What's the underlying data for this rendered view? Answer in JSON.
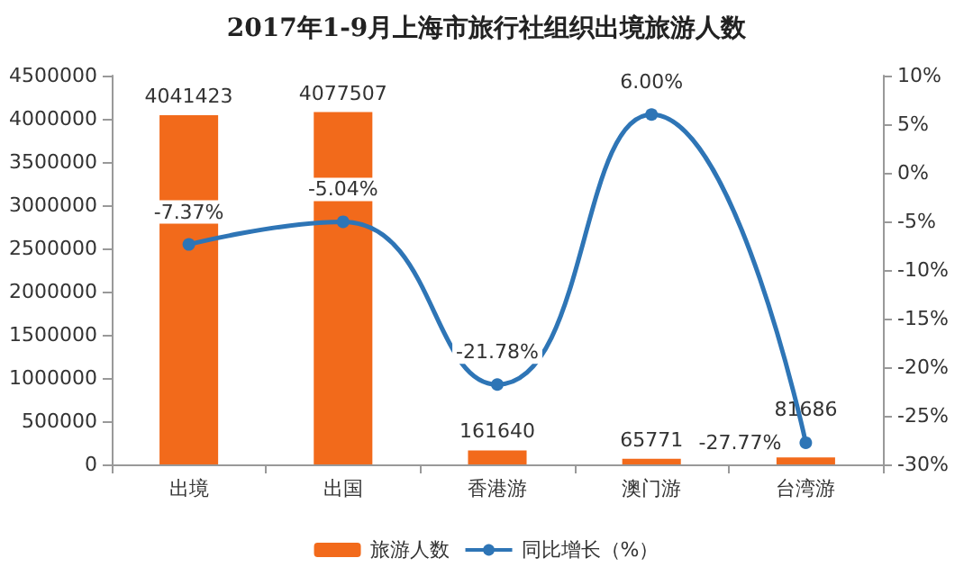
{
  "chart_data": {
    "type": "bar",
    "title": "2017年1-9月上海市旅行社组织出境旅游人数",
    "categories": [
      "出境",
      "出国",
      "香港游",
      "澳门游",
      "台湾游"
    ],
    "series": [
      {
        "name": "旅游人数",
        "color": "#f26a1b",
        "values": [
          4041423,
          4077507,
          161640,
          65771,
          81686
        ],
        "data_labels": true
      },
      {
        "name": "同比增长（%）",
        "type": "line",
        "axis": "y2",
        "color": "#2e75b6",
        "values": [
          -7.37,
          -5.04,
          -21.78,
          6.0,
          -27.77
        ],
        "value_labels": [
          "-7.37%",
          "-5.04%",
          "-21.78%",
          "6.00%",
          "-27.77%"
        ],
        "marker": "circle"
      }
    ],
    "ylim": [
      0,
      4500000
    ],
    "yticks": [
      0,
      500000,
      1000000,
      1500000,
      2000000,
      2500000,
      3000000,
      3500000,
      4000000,
      4500000
    ],
    "y2lim": [
      -30,
      10
    ],
    "y2ticks": [
      {
        "value": -30,
        "label": "-30%"
      },
      {
        "value": -25,
        "label": "-25%"
      },
      {
        "value": -20,
        "label": "-20%"
      },
      {
        "value": -15,
        "label": "-15%"
      },
      {
        "value": -10,
        "label": "-10%"
      },
      {
        "value": -5,
        "label": "-5%"
      },
      {
        "value": 0,
        "label": "0%"
      },
      {
        "value": 5,
        "label": "5%"
      },
      {
        "value": 10,
        "label": "10%"
      }
    ],
    "grid": false,
    "legend": "bottom"
  }
}
